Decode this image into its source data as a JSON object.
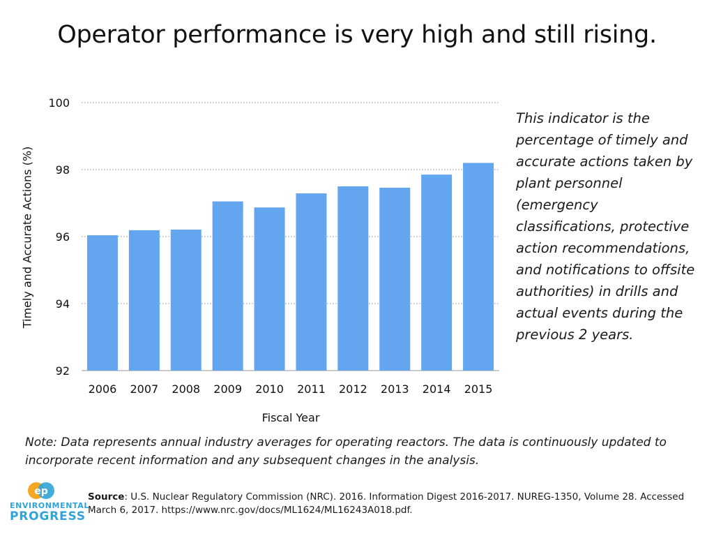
{
  "page": {
    "title": "Operator performance is very high and still rising.",
    "description": "This indicator is the percentage of timely and accurate actions taken by plant personnel (emergency classifications, protective action recommendations, and notifications to offsite authorities) in drills and actual events during the previous 2 years.",
    "note": "Note: Data represents annual industry averages for operating reactors. The data is continuously updated to incorporate recent information and any subsequent changes in the analysis.",
    "source_label": "Source",
    "source_text": ": U.S. Nuclear Regulatory Commission (NRC). 2016. Information Digest 2016-2017. NUREG-1350, Volume 28. Accessed March 6, 2017. https://www.nrc.gov/docs/ML1624/ML16243A018.pdf.",
    "logo_line1": "ENVIRONMENTAL",
    "logo_line2": "PROGRESS",
    "logo_mark_letters": "ep",
    "colors": {
      "bar": "#64a5ef",
      "grid": "#8c8c8c",
      "logo_orange": "#f5a623",
      "logo_blue": "#2fa4d8"
    }
  },
  "chart_data": {
    "type": "bar",
    "title": "Operator performance is very high and still rising.",
    "xlabel": "Fiscal Year",
    "ylabel": "Timely and Accurate Actions (%)",
    "categories": [
      "2006",
      "2007",
      "2008",
      "2009",
      "2010",
      "2011",
      "2012",
      "2013",
      "2014",
      "2015"
    ],
    "values": [
      96.04,
      96.19,
      96.21,
      97.05,
      96.87,
      97.29,
      97.5,
      97.46,
      97.85,
      98.2
    ],
    "ylim": [
      92,
      100
    ],
    "yticks": [
      92,
      94,
      96,
      98,
      100
    ],
    "grid": true,
    "legend": "none"
  }
}
